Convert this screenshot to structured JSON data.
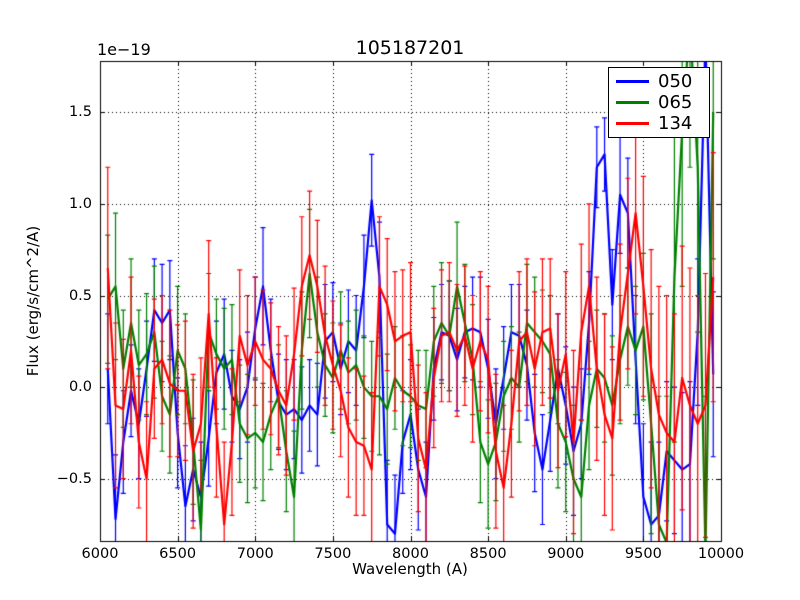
{
  "figure": {
    "title": "105187201",
    "offset_label": "1e−19",
    "xlabel": "Wavelength (A)",
    "ylabel": "Flux (erg/s/cm^2/A)",
    "background_color": "#ffffff",
    "frame_color": "#000000"
  },
  "legend": {
    "position": "upper right",
    "entries": [
      {
        "label": "050",
        "color": "#0000ff"
      },
      {
        "label": "065",
        "color": "#008000"
      },
      {
        "label": "134",
        "color": "#ff0000"
      }
    ]
  },
  "chart_data": {
    "type": "line",
    "title": "105187201",
    "xlabel": "Wavelength (A)",
    "ylabel": "Flux (erg/s/cm^2/A)",
    "y_scale_factor": "1e-19",
    "xlim": [
      6000,
      10000
    ],
    "ylim": [
      -0.84,
      1.78
    ],
    "x_ticks": [
      6000,
      6500,
      7000,
      7500,
      8000,
      8500,
      9000,
      9500,
      10000
    ],
    "x_tick_labels": [
      "6000",
      "6500",
      "7000",
      "7500",
      "8000",
      "8500",
      "9000",
      "9500",
      "10000"
    ],
    "y_ticks": [
      -0.5,
      0.0,
      0.5,
      1.0,
      1.5
    ],
    "y_tick_labels": [
      "−0.5",
      "0.0",
      "0.5",
      "1.0",
      "1.5"
    ],
    "grid": true,
    "grid_style": "dotted",
    "legend_position": "upper right",
    "x": [
      6050,
      6100,
      6150,
      6200,
      6250,
      6300,
      6350,
      6400,
      6450,
      6500,
      6550,
      6600,
      6650,
      6700,
      6750,
      6800,
      6850,
      6900,
      6950,
      7000,
      7050,
      7100,
      7150,
      7200,
      7250,
      7300,
      7350,
      7400,
      7450,
      7500,
      7550,
      7600,
      7650,
      7700,
      7750,
      7800,
      7850,
      7900,
      7950,
      8000,
      8050,
      8100,
      8150,
      8200,
      8250,
      8300,
      8350,
      8400,
      8450,
      8500,
      8550,
      8600,
      8650,
      8700,
      8750,
      8800,
      8850,
      8900,
      8950,
      9000,
      9050,
      9100,
      9150,
      9200,
      9250,
      9300,
      9350,
      9400,
      9450,
      9500,
      9550,
      9600,
      9650,
      9700,
      9750,
      9800,
      9850,
      9900,
      9950
    ],
    "series": [
      {
        "name": "050",
        "color": "#0000ff",
        "values": [
          0.1,
          -0.72,
          -0.3,
          -0.02,
          -0.2,
          0.1,
          0.42,
          0.35,
          0.42,
          -0.25,
          -0.65,
          -0.45,
          -0.6,
          -0.28,
          0.08,
          0.18,
          -0.05,
          -0.12,
          0.0,
          0.32,
          0.55,
          0.2,
          -0.08,
          -0.15,
          -0.12,
          -0.18,
          -0.1,
          -0.15,
          0.25,
          0.3,
          0.1,
          0.25,
          0.2,
          0.55,
          1.02,
          0.6,
          -0.75,
          -0.8,
          -0.3,
          -0.15,
          -0.45,
          -0.6,
          0.1,
          0.3,
          0.28,
          0.15,
          0.3,
          0.32,
          0.3,
          0.1,
          -0.2,
          0.05,
          0.3,
          0.28,
          0.12,
          -0.25,
          -0.45,
          -0.18,
          0.1,
          -0.1,
          -0.35,
          -0.2,
          0.35,
          1.2,
          1.27,
          0.45,
          1.05,
          0.95,
          0.15,
          -0.6,
          -0.75,
          -0.7,
          -0.35,
          -0.4,
          -0.45,
          -0.42,
          0.3,
          1.9,
          0.07
        ],
        "errors": [
          0.3,
          0.35,
          0.28,
          0.25,
          0.3,
          0.26,
          0.28,
          0.32,
          0.27,
          0.3,
          0.33,
          0.28,
          0.3,
          0.26,
          0.28,
          0.3,
          0.25,
          0.27,
          0.3,
          0.28,
          0.32,
          0.28,
          0.26,
          0.3,
          0.27,
          0.29,
          0.25,
          0.28,
          0.31,
          0.27,
          0.25,
          0.28,
          0.3,
          0.28,
          0.25,
          0.3,
          0.35,
          0.32,
          0.28,
          0.3,
          0.33,
          0.3,
          0.28,
          0.26,
          0.3,
          0.28,
          0.25,
          0.28,
          0.3,
          0.27,
          0.3,
          0.28,
          0.26,
          0.28,
          0.3,
          0.32,
          0.3,
          0.28,
          0.3,
          0.32,
          0.35,
          0.3,
          0.28,
          0.22,
          0.2,
          0.3,
          0.32,
          0.3,
          0.35,
          0.4,
          0.45,
          0.4,
          0.38,
          0.4,
          0.42,
          0.45,
          0.4,
          0.5,
          0.45
        ]
      },
      {
        "name": "065",
        "color": "#008000",
        "values": [
          0.48,
          0.55,
          0.1,
          0.35,
          0.12,
          0.18,
          0.3,
          -0.05,
          -0.15,
          0.2,
          0.1,
          -0.3,
          -0.78,
          0.3,
          0.18,
          0.1,
          0.15,
          -0.2,
          -0.28,
          -0.25,
          -0.3,
          -0.15,
          -0.05,
          -0.35,
          -0.6,
          0.2,
          0.62,
          0.3,
          0.12,
          0.05,
          0.2,
          0.08,
          0.12,
          0.0,
          -0.05,
          -0.05,
          -0.12,
          0.05,
          -0.02,
          -0.05,
          -0.1,
          -0.12,
          0.25,
          0.35,
          0.28,
          0.55,
          0.35,
          0.15,
          -0.3,
          -0.42,
          -0.3,
          -0.05,
          0.05,
          0.0,
          0.35,
          0.3,
          0.25,
          0.18,
          -0.2,
          -0.3,
          -0.5,
          -0.6,
          -0.1,
          0.1,
          0.05,
          -0.1,
          0.15,
          0.33,
          0.2,
          0.33,
          -0.2,
          -0.75,
          -0.85,
          0.6,
          1.4,
          2.0,
          1.2,
          -0.9,
          1.5
        ],
        "errors": [
          0.35,
          0.4,
          0.32,
          0.35,
          0.3,
          0.33,
          0.36,
          0.3,
          0.32,
          0.35,
          0.3,
          0.34,
          0.38,
          0.32,
          0.3,
          0.33,
          0.3,
          0.32,
          0.35,
          0.3,
          0.32,
          0.3,
          0.28,
          0.33,
          0.36,
          0.32,
          0.35,
          0.3,
          0.28,
          0.3,
          0.32,
          0.28,
          0.3,
          0.28,
          0.3,
          0.32,
          0.3,
          0.28,
          0.3,
          0.28,
          0.3,
          0.32,
          0.3,
          0.33,
          0.3,
          0.35,
          0.32,
          0.3,
          0.33,
          0.35,
          0.32,
          0.3,
          0.28,
          0.3,
          0.32,
          0.3,
          0.28,
          0.32,
          0.35,
          0.38,
          0.4,
          0.42,
          0.35,
          0.32,
          0.35,
          0.38,
          0.35,
          0.32,
          0.35,
          0.4,
          0.6,
          0.7,
          0.8,
          0.9,
          0.85,
          0.8,
          0.9,
          0.85,
          0.8
        ]
      },
      {
        "name": "134",
        "color": "#ff0000",
        "values": [
          0.65,
          -0.1,
          -0.12,
          0.2,
          -0.3,
          -0.5,
          0.1,
          0.15,
          0.02,
          -0.02,
          -0.02,
          -0.35,
          -0.2,
          0.4,
          -0.22,
          -0.75,
          -0.3,
          0.28,
          0.12,
          0.25,
          0.15,
          0.1,
          -0.02,
          -0.1,
          0.18,
          0.55,
          0.72,
          0.55,
          0.28,
          0.12,
          -0.02,
          -0.22,
          -0.3,
          -0.32,
          -0.45,
          0.55,
          0.45,
          0.25,
          0.28,
          0.3,
          -0.28,
          -0.45,
          0.05,
          0.28,
          0.3,
          0.2,
          0.28,
          0.1,
          0.25,
          0.15,
          -0.35,
          -0.55,
          -0.2,
          0.25,
          0.3,
          0.1,
          0.3,
          0.32,
          -0.02,
          0.18,
          -0.3,
          0.3,
          0.55,
          0.1,
          -0.15,
          -0.28,
          0.3,
          0.62,
          0.95,
          0.55,
          0.1,
          -0.15,
          -0.25,
          -0.3,
          0.05,
          -0.1,
          -0.2,
          -0.1,
          0.6
        ],
        "errors": [
          0.55,
          0.45,
          0.38,
          0.4,
          0.36,
          0.42,
          0.38,
          0.35,
          0.4,
          0.36,
          0.38,
          0.42,
          0.36,
          0.4,
          0.38,
          0.45,
          0.4,
          0.36,
          0.38,
          0.35,
          0.38,
          0.36,
          0.35,
          0.38,
          0.36,
          0.38,
          0.35,
          0.36,
          0.38,
          0.35,
          0.36,
          0.38,
          0.4,
          0.38,
          0.42,
          0.38,
          0.36,
          0.38,
          0.36,
          0.38,
          0.4,
          0.42,
          0.38,
          0.36,
          0.38,
          0.36,
          0.38,
          0.4,
          0.38,
          0.4,
          0.42,
          0.45,
          0.4,
          0.38,
          0.4,
          0.42,
          0.4,
          0.38,
          0.42,
          0.45,
          0.5,
          0.48,
          0.45,
          0.5,
          0.55,
          0.5,
          0.48,
          0.52,
          0.55,
          0.6,
          0.65,
          0.7,
          0.75,
          0.7,
          0.72,
          0.75,
          0.7,
          0.72,
          0.68
        ]
      }
    ]
  }
}
